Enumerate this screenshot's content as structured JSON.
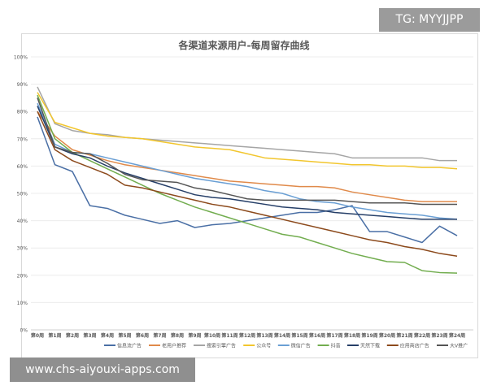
{
  "watermark_top": "TG: MYYJJPP",
  "watermark_bottom": "www.chs-aiyouxi-apps.com",
  "chart_data": {
    "type": "line",
    "title": "各渠道来源用户-每周留存曲线",
    "xlabel": "",
    "ylabel": "",
    "ylim": [
      0,
      100
    ],
    "yticks": [
      "0%",
      "10%",
      "20%",
      "30%",
      "40%",
      "50%",
      "60%",
      "70%",
      "80%",
      "90%",
      "100%"
    ],
    "grid": true,
    "legend_position": "bottom",
    "categories": [
      "第0周",
      "第1周",
      "第2周",
      "第3周",
      "第4周",
      "第5周",
      "第6周",
      "第7周",
      "第8周",
      "第9周",
      "第10周",
      "第11周",
      "第12周",
      "第13周",
      "第14周",
      "第15周",
      "第16周",
      "第17周",
      "第18周",
      "第19周",
      "第20周",
      "第21周",
      "第22周",
      "第23周",
      "第24周"
    ],
    "series": [
      {
        "name": "信息流广告",
        "color": "#4a6fa5",
        "values": [
          78,
          60.5,
          58,
          45.5,
          44.5,
          42,
          40.5,
          39,
          40,
          37.5,
          38.5,
          39,
          40,
          41,
          42,
          43,
          43,
          44,
          45.5,
          36,
          36,
          34,
          32,
          38,
          34.5
        ]
      },
      {
        "name": "老用户推荐",
        "color": "#e08a4a",
        "values": [
          80,
          71,
          66,
          64,
          62,
          60.5,
          59.5,
          58.5,
          57.5,
          56.5,
          55.5,
          54.5,
          54,
          53.5,
          53,
          52.5,
          52.5,
          52,
          50.5,
          49.5,
          48.5,
          47.5,
          47,
          47,
          47
        ]
      },
      {
        "name": "搜索引擎广告",
        "color": "#a5a5a5",
        "values": [
          89,
          75.5,
          73,
          72,
          71.5,
          70.5,
          70,
          69.5,
          69,
          68.5,
          68,
          67.5,
          67,
          66.5,
          66,
          65.5,
          65,
          64.5,
          63,
          63,
          63,
          63,
          63,
          62,
          62
        ]
      },
      {
        "name": "公众号",
        "color": "#f2c62e",
        "values": [
          87,
          76,
          74,
          72,
          71,
          70.5,
          70,
          69,
          68,
          67,
          66.5,
          66,
          64.5,
          63,
          62.5,
          62,
          61.5,
          61,
          60.5,
          60.5,
          60,
          60,
          59.5,
          59.5,
          59
        ]
      },
      {
        "name": "微信广告",
        "color": "#6a9fd4",
        "values": [
          83,
          68,
          65,
          64.5,
          63,
          61.5,
          60,
          58.5,
          57,
          55.5,
          54.5,
          53.5,
          52.5,
          51,
          50,
          48,
          47,
          46.5,
          45,
          44,
          43,
          42.5,
          42,
          41,
          40.5
        ]
      },
      {
        "name": "抖音",
        "color": "#72ad4f",
        "values": [
          86,
          70,
          65,
          62,
          59,
          56,
          53,
          50,
          47.5,
          45,
          43,
          41,
          39,
          37,
          35,
          34,
          32,
          30,
          28,
          26.5,
          25,
          24.7,
          21.7,
          21,
          20.8
        ]
      },
      {
        "name": "天然下载",
        "color": "#263f68",
        "values": [
          82,
          67,
          64.5,
          63,
          60,
          57.5,
          55.5,
          53.5,
          51.5,
          49.5,
          48.5,
          48,
          47,
          46,
          45,
          44.5,
          44,
          43,
          42.5,
          42,
          41.5,
          41,
          40.5,
          40.5,
          40.5
        ]
      },
      {
        "name": "应用商店广告",
        "color": "#8c4a1c",
        "values": [
          80,
          66,
          62,
          59.5,
          57,
          53,
          52,
          50.5,
          49,
          47.5,
          46,
          45,
          43.5,
          42,
          40.5,
          39,
          37.5,
          36,
          34.5,
          33,
          32,
          30.5,
          29.5,
          28,
          27
        ]
      },
      {
        "name": "大V推广",
        "color": "#555555",
        "values": [
          85,
          67,
          65,
          64.5,
          61,
          57,
          55,
          54.5,
          54,
          52,
          51,
          49.5,
          48,
          47.5,
          47.5,
          47.5,
          47.5,
          47.5,
          47,
          46.5,
          46.5,
          46.5,
          46,
          46,
          46
        ]
      }
    ]
  }
}
